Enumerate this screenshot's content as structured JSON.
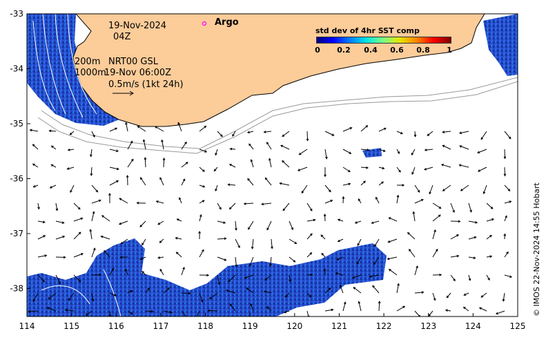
{
  "map": {
    "title_date": "19-Nov-2024",
    "title_hour": "04Z",
    "legend_argo": "Argo",
    "contour_label_200": "200m",
    "contour_label_1000": "1000m",
    "product_label": "NRT00 GSL",
    "product_time": "19-Nov 06:00Z",
    "scale_label": "0.5m/s (1kt 24h)",
    "credit": "© IMOS 22-Nov-2024 14:55 Hobart",
    "lon_ticks": [
      "114",
      "115",
      "116",
      "117",
      "118",
      "119",
      "120",
      "121",
      "122",
      "123",
      "124",
      "125"
    ],
    "lat_ticks": [
      "-33",
      "-34",
      "-35",
      "-36",
      "-37",
      "-38"
    ],
    "colorbar": {
      "title": "std dev of 4hr SST comp",
      "ticks": [
        "0",
        "0.2",
        "0.4",
        "0.6",
        "0.8",
        "1"
      ]
    },
    "colors": {
      "land": "#fccc99",
      "sst_low": "#1f3fbf",
      "argo_marker": "#ff00ff",
      "contour": "#999999"
    }
  }
}
